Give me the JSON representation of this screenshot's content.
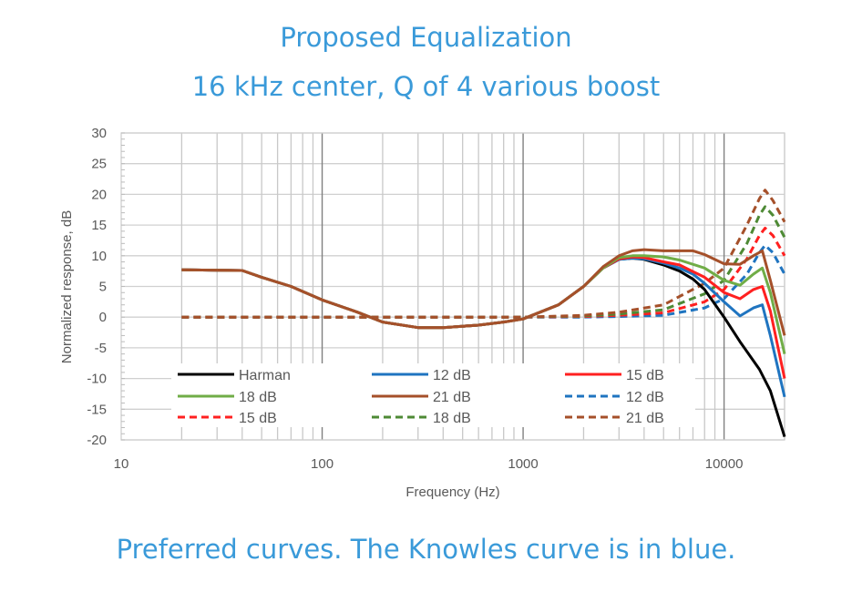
{
  "title_line1": "Proposed Equalization",
  "title_line2": "16 kHz center, Q of 4 various boost",
  "caption": "Preferred curves. The Knowles curve is in blue.",
  "chart_data": {
    "type": "line",
    "xlabel": "Frequency (Hz)",
    "ylabel": "Normalized response, dB",
    "xscale": "log",
    "xlim": [
      10,
      20000
    ],
    "ylim": [
      -20,
      30
    ],
    "xticks": [
      10,
      100,
      1000,
      10000
    ],
    "yticks": [
      30,
      25,
      20,
      15,
      10,
      5,
      0,
      -5,
      -10,
      -15,
      -20
    ],
    "grid": true,
    "legend_placement": "bottom-center",
    "series": [
      {
        "name": "Harman",
        "color": "#000000",
        "dash": false,
        "points": [
          [
            20,
            7.7
          ],
          [
            40,
            7.6
          ],
          [
            50,
            6.5
          ],
          [
            70,
            5
          ],
          [
            100,
            2.8
          ],
          [
            150,
            0.8
          ],
          [
            200,
            -0.8
          ],
          [
            300,
            -1.7
          ],
          [
            400,
            -1.7
          ],
          [
            600,
            -1.3
          ],
          [
            800,
            -0.8
          ],
          [
            1000,
            -0.3
          ],
          [
            1500,
            2
          ],
          [
            2000,
            5
          ],
          [
            2500,
            8
          ],
          [
            3000,
            9.4
          ],
          [
            3500,
            9.6
          ],
          [
            4000,
            9.4
          ],
          [
            5000,
            8.5
          ],
          [
            6000,
            7.5
          ],
          [
            7000,
            6.2
          ],
          [
            8000,
            4.5
          ],
          [
            10000,
            0
          ],
          [
            12000,
            -4
          ],
          [
            15000,
            -8.5
          ],
          [
            17000,
            -12
          ],
          [
            20000,
            -19.5
          ]
        ]
      },
      {
        "name": "12 dB",
        "color": "#1f74c0",
        "dash": false,
        "points": [
          [
            20,
            7.7
          ],
          [
            40,
            7.6
          ],
          [
            50,
            6.5
          ],
          [
            70,
            5
          ],
          [
            100,
            2.8
          ],
          [
            150,
            0.8
          ],
          [
            200,
            -0.8
          ],
          [
            300,
            -1.7
          ],
          [
            400,
            -1.7
          ],
          [
            600,
            -1.3
          ],
          [
            800,
            -0.8
          ],
          [
            1000,
            -0.3
          ],
          [
            1500,
            2
          ],
          [
            2000,
            5
          ],
          [
            2500,
            8
          ],
          [
            3000,
            9.4
          ],
          [
            3500,
            9.6
          ],
          [
            4000,
            9.5
          ],
          [
            5000,
            8.8
          ],
          [
            6000,
            8
          ],
          [
            7000,
            7
          ],
          [
            8000,
            5.5
          ],
          [
            10000,
            2.5
          ],
          [
            12000,
            0.2
          ],
          [
            14000,
            1.5
          ],
          [
            15500,
            2
          ],
          [
            17000,
            -3
          ],
          [
            20000,
            -13
          ]
        ]
      },
      {
        "name": "15 dB",
        "color": "#ff2020",
        "dash": false,
        "points": [
          [
            20,
            7.7
          ],
          [
            40,
            7.6
          ],
          [
            50,
            6.5
          ],
          [
            70,
            5
          ],
          [
            100,
            2.8
          ],
          [
            150,
            0.8
          ],
          [
            200,
            -0.8
          ],
          [
            300,
            -1.7
          ],
          [
            400,
            -1.7
          ],
          [
            600,
            -1.3
          ],
          [
            800,
            -0.8
          ],
          [
            1000,
            -0.3
          ],
          [
            1500,
            2
          ],
          [
            2000,
            5
          ],
          [
            2500,
            8
          ],
          [
            3000,
            9.5
          ],
          [
            3500,
            9.8
          ],
          [
            4000,
            9.7
          ],
          [
            5000,
            9
          ],
          [
            6000,
            8.5
          ],
          [
            8000,
            6.5
          ],
          [
            10000,
            4
          ],
          [
            12000,
            3
          ],
          [
            14000,
            4.5
          ],
          [
            15500,
            5
          ],
          [
            17000,
            1
          ],
          [
            20000,
            -10
          ]
        ]
      },
      {
        "name": "18 dB",
        "color": "#70ad47",
        "dash": false,
        "points": [
          [
            20,
            7.7
          ],
          [
            40,
            7.6
          ],
          [
            50,
            6.5
          ],
          [
            70,
            5
          ],
          [
            100,
            2.8
          ],
          [
            150,
            0.8
          ],
          [
            200,
            -0.8
          ],
          [
            300,
            -1.7
          ],
          [
            400,
            -1.7
          ],
          [
            600,
            -1.3
          ],
          [
            800,
            -0.8
          ],
          [
            1000,
            -0.3
          ],
          [
            1500,
            2
          ],
          [
            2000,
            5
          ],
          [
            2500,
            8
          ],
          [
            3000,
            9.7
          ],
          [
            3500,
            10
          ],
          [
            4000,
            10
          ],
          [
            5000,
            9.8
          ],
          [
            6000,
            9.3
          ],
          [
            8000,
            8
          ],
          [
            10000,
            6
          ],
          [
            12000,
            5.2
          ],
          [
            14000,
            7
          ],
          [
            15500,
            8
          ],
          [
            17000,
            4
          ],
          [
            20000,
            -6
          ]
        ]
      },
      {
        "name": "21 dB",
        "color": "#a5502a",
        "dash": false,
        "points": [
          [
            20,
            7.7
          ],
          [
            40,
            7.6
          ],
          [
            50,
            6.5
          ],
          [
            70,
            5
          ],
          [
            100,
            2.8
          ],
          [
            150,
            0.8
          ],
          [
            200,
            -0.8
          ],
          [
            300,
            -1.7
          ],
          [
            400,
            -1.7
          ],
          [
            600,
            -1.3
          ],
          [
            800,
            -0.8
          ],
          [
            1000,
            -0.3
          ],
          [
            1500,
            2
          ],
          [
            2000,
            5
          ],
          [
            2500,
            8.2
          ],
          [
            3000,
            10
          ],
          [
            3500,
            10.8
          ],
          [
            4000,
            11
          ],
          [
            5000,
            10.8
          ],
          [
            7000,
            10.8
          ],
          [
            8000,
            10.2
          ],
          [
            10000,
            8.7
          ],
          [
            12000,
            8.6
          ],
          [
            14000,
            10
          ],
          [
            15500,
            10.8
          ],
          [
            17000,
            6
          ],
          [
            20000,
            -3
          ]
        ]
      },
      {
        "name": "12 dB",
        "color": "#1f74c0",
        "dash": true,
        "points": [
          [
            20,
            0
          ],
          [
            1000,
            0
          ],
          [
            2000,
            0
          ],
          [
            3000,
            0.1
          ],
          [
            5000,
            0.3
          ],
          [
            8000,
            1.5
          ],
          [
            10000,
            3
          ],
          [
            13000,
            7
          ],
          [
            15000,
            10.5
          ],
          [
            16000,
            11.7
          ],
          [
            17500,
            10.5
          ],
          [
            20000,
            7
          ]
        ]
      },
      {
        "name": "15 dB",
        "color": "#ff2020",
        "dash": true,
        "points": [
          [
            20,
            0
          ],
          [
            1000,
            0
          ],
          [
            2000,
            0.1
          ],
          [
            3000,
            0.3
          ],
          [
            5000,
            0.7
          ],
          [
            8000,
            2.5
          ],
          [
            10000,
            4.5
          ],
          [
            13000,
            9.5
          ],
          [
            15000,
            13.3
          ],
          [
            16000,
            14.5
          ],
          [
            17500,
            13.3
          ],
          [
            20000,
            10
          ]
        ]
      },
      {
        "name": "18 dB",
        "color": "#4e8a35",
        "dash": true,
        "points": [
          [
            20,
            0
          ],
          [
            1000,
            0
          ],
          [
            2000,
            0.2
          ],
          [
            3000,
            0.5
          ],
          [
            5000,
            1.2
          ],
          [
            8000,
            3.8
          ],
          [
            10000,
            6
          ],
          [
            13000,
            12
          ],
          [
            15000,
            16.6
          ],
          [
            16000,
            18
          ],
          [
            17500,
            16.6
          ],
          [
            20000,
            13
          ]
        ]
      },
      {
        "name": "21 dB",
        "color": "#a5502a",
        "dash": true,
        "points": [
          [
            20,
            0
          ],
          [
            1000,
            0
          ],
          [
            2000,
            0.3
          ],
          [
            3000,
            0.8
          ],
          [
            5000,
            2
          ],
          [
            8000,
            5.5
          ],
          [
            10000,
            8
          ],
          [
            13000,
            15
          ],
          [
            15000,
            19.3
          ],
          [
            16000,
            20.7
          ],
          [
            17500,
            19
          ],
          [
            20000,
            15.5
          ]
        ]
      }
    ]
  }
}
